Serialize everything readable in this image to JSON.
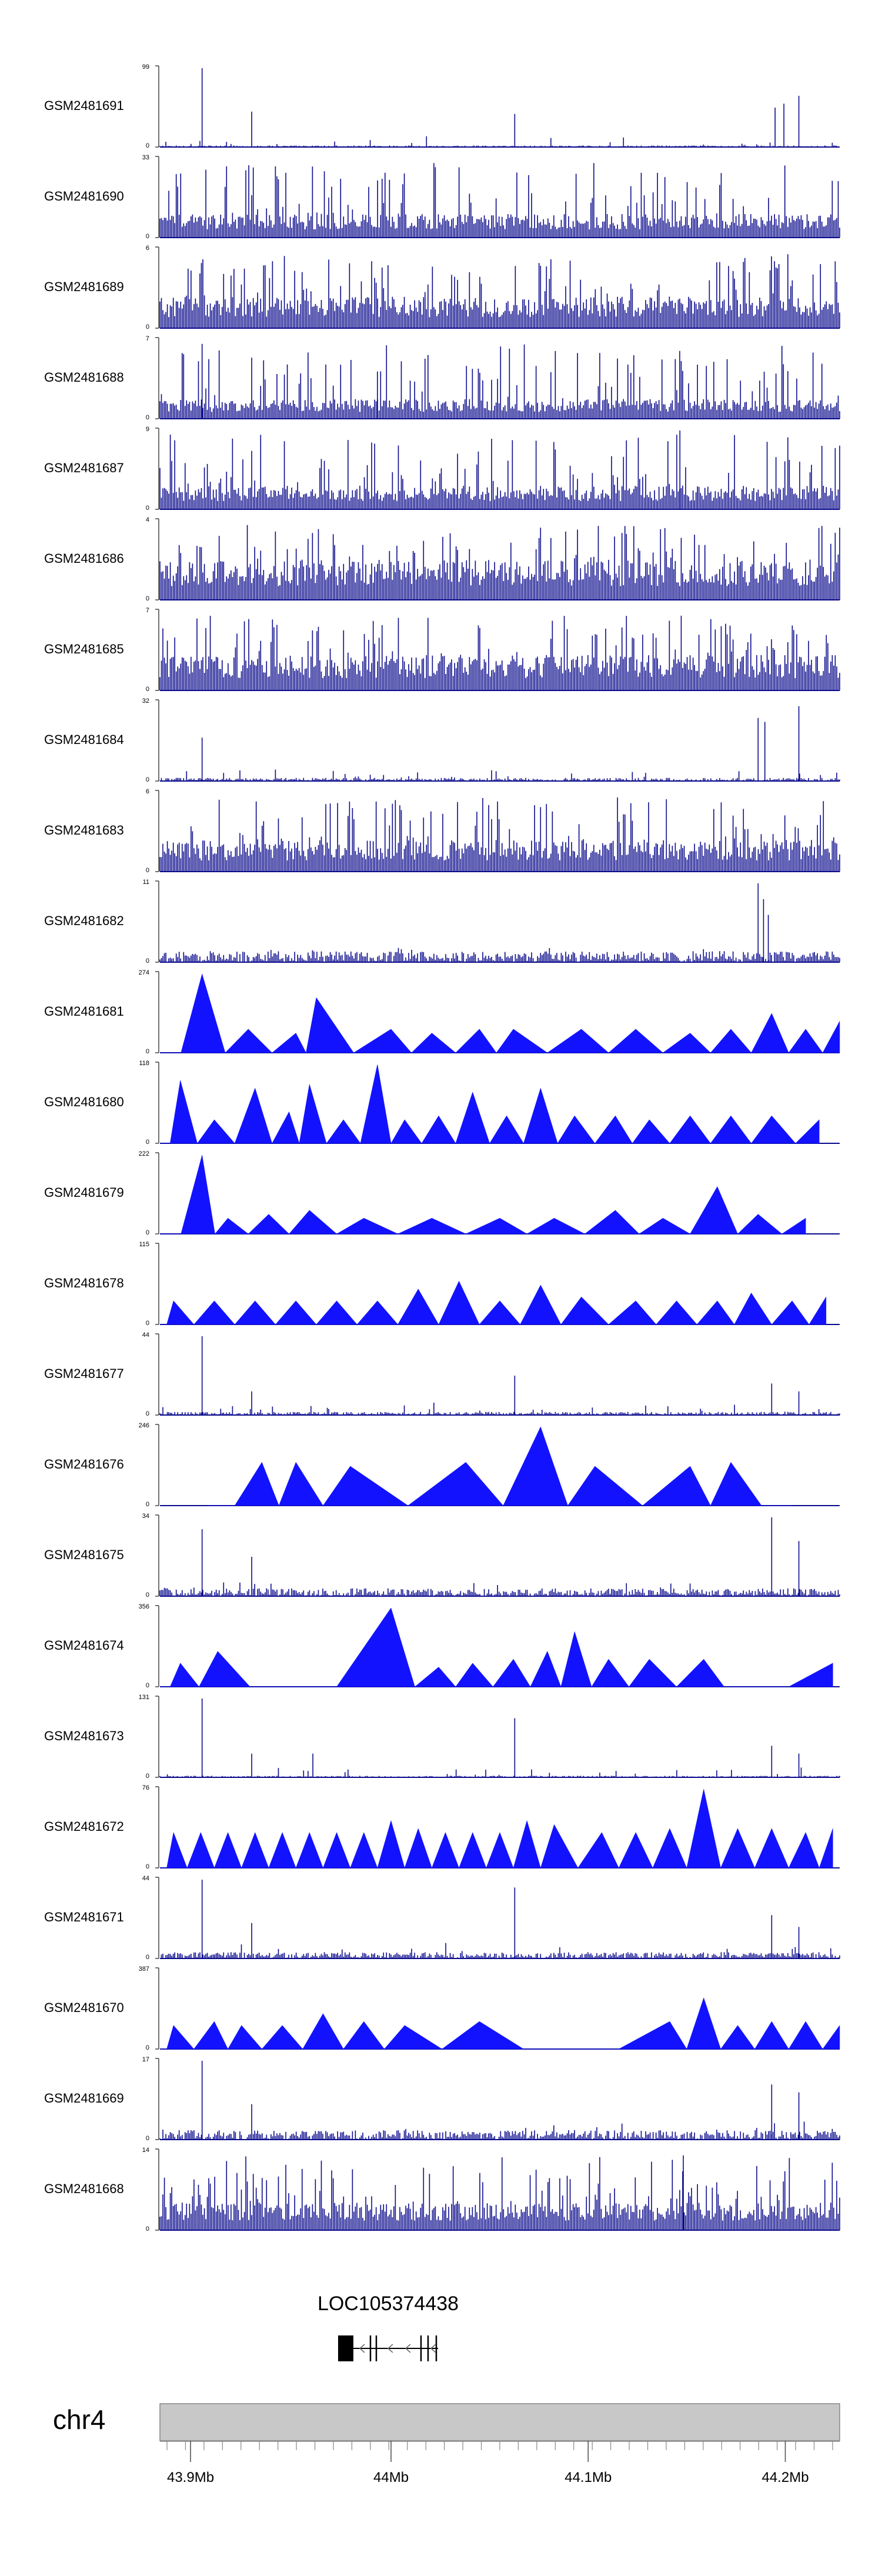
{
  "chart_data": {
    "type": "genome-tracks",
    "colors": {
      "dense": "#0b0b8c",
      "triangles": "#1212ff",
      "axis": "#444444",
      "gene": "#000000",
      "ideogram": "#c8c8c8"
    },
    "tracks": [
      {
        "name": "GSM2481691",
        "ymax": "99",
        "ymin": "0",
        "style": "sparse",
        "base": 0.02,
        "spikes": [
          [
            0.062,
            1.0
          ],
          [
            0.135,
            0.45
          ],
          [
            0.522,
            0.42
          ],
          [
            0.905,
            0.5
          ],
          [
            0.918,
            0.55
          ],
          [
            0.94,
            0.65
          ]
        ]
      },
      {
        "name": "GSM2481690",
        "ymax": "33",
        "ymin": "0",
        "style": "dense",
        "base": 0.3
      },
      {
        "name": "GSM2481689",
        "ymax": "6",
        "ymin": "0",
        "style": "dense",
        "base": 0.4
      },
      {
        "name": "GSM2481688",
        "ymax": "7",
        "ymin": "0",
        "style": "dense",
        "base": 0.25,
        "spikes": [
          [
            0.062,
            0.95
          ],
          [
            0.32,
            0.6
          ]
        ]
      },
      {
        "name": "GSM2481687",
        "ymax": "9",
        "ymin": "0",
        "style": "dense",
        "base": 0.3,
        "spikes": [
          [
            0.765,
            1.0
          ]
        ]
      },
      {
        "name": "GSM2481686",
        "ymax": "4",
        "ymin": "0",
        "style": "dense",
        "base": 0.5
      },
      {
        "name": "GSM2481685",
        "ymax": "7",
        "ymin": "0",
        "style": "dense",
        "base": 0.45
      },
      {
        "name": "GSM2481684",
        "ymax": "32",
        "ymin": "0",
        "style": "sparse",
        "base": 0.04,
        "spikes": [
          [
            0.062,
            0.55
          ],
          [
            0.88,
            0.8
          ],
          [
            0.89,
            0.75
          ],
          [
            0.94,
            0.95
          ]
        ]
      },
      {
        "name": "GSM2481683",
        "ymax": "6",
        "ymin": "0",
        "style": "dense",
        "base": 0.4
      },
      {
        "name": "GSM2481682",
        "ymax": "11",
        "ymin": "0",
        "style": "sparse",
        "base": 0.14,
        "spikes": [
          [
            0.88,
            1.0
          ],
          [
            0.888,
            0.8
          ],
          [
            0.895,
            0.6
          ]
        ]
      },
      {
        "name": "GSM2481681",
        "ymax": "274",
        "ymin": "0",
        "style": "triangles",
        "peaks": [
          [
            0.0,
            0.0
          ],
          [
            0.062,
            1.0
          ],
          [
            0.13,
            0.3
          ],
          [
            0.2,
            0.25
          ],
          [
            0.23,
            0.7
          ],
          [
            0.34,
            0.3
          ],
          [
            0.4,
            0.25
          ],
          [
            0.47,
            0.3
          ],
          [
            0.52,
            0.3
          ],
          [
            0.62,
            0.3
          ],
          [
            0.7,
            0.3
          ],
          [
            0.78,
            0.25
          ],
          [
            0.84,
            0.3
          ],
          [
            0.9,
            0.5
          ],
          [
            0.95,
            0.3
          ],
          [
            1.0,
            0.4
          ]
        ]
      },
      {
        "name": "GSM2481680",
        "ymax": "118",
        "ymin": "0",
        "style": "triangles",
        "peaks": [
          [
            0.0,
            0.0
          ],
          [
            0.03,
            0.8
          ],
          [
            0.08,
            0.3
          ],
          [
            0.14,
            0.7
          ],
          [
            0.19,
            0.4
          ],
          [
            0.22,
            0.75
          ],
          [
            0.27,
            0.3
          ],
          [
            0.32,
            1.0
          ],
          [
            0.36,
            0.3
          ],
          [
            0.41,
            0.35
          ],
          [
            0.46,
            0.65
          ],
          [
            0.51,
            0.35
          ],
          [
            0.56,
            0.7
          ],
          [
            0.61,
            0.35
          ],
          [
            0.67,
            0.35
          ],
          [
            0.72,
            0.3
          ],
          [
            0.78,
            0.35
          ],
          [
            0.84,
            0.35
          ],
          [
            0.9,
            0.35
          ],
          [
            0.97,
            0.3
          ]
        ]
      },
      {
        "name": "GSM2481679",
        "ymax": "222",
        "ymin": "0",
        "style": "triangles",
        "peaks": [
          [
            0.0,
            0.0
          ],
          [
            0.062,
            1.0
          ],
          [
            0.1,
            0.2
          ],
          [
            0.16,
            0.25
          ],
          [
            0.22,
            0.3
          ],
          [
            0.3,
            0.2
          ],
          [
            0.4,
            0.2
          ],
          [
            0.5,
            0.2
          ],
          [
            0.58,
            0.2
          ],
          [
            0.67,
            0.3
          ],
          [
            0.74,
            0.2
          ],
          [
            0.82,
            0.6
          ],
          [
            0.88,
            0.25
          ],
          [
            0.95,
            0.2
          ]
        ]
      },
      {
        "name": "GSM2481678",
        "ymax": "115",
        "ymin": "0",
        "style": "triangles",
        "peaks": [
          [
            0.0,
            0.0
          ],
          [
            0.02,
            0.3
          ],
          [
            0.08,
            0.3
          ],
          [
            0.14,
            0.3
          ],
          [
            0.2,
            0.3
          ],
          [
            0.26,
            0.3
          ],
          [
            0.32,
            0.3
          ],
          [
            0.38,
            0.45
          ],
          [
            0.44,
            0.55
          ],
          [
            0.5,
            0.3
          ],
          [
            0.56,
            0.5
          ],
          [
            0.62,
            0.35
          ],
          [
            0.7,
            0.3
          ],
          [
            0.76,
            0.3
          ],
          [
            0.82,
            0.3
          ],
          [
            0.87,
            0.4
          ],
          [
            0.93,
            0.3
          ],
          [
            0.98,
            0.35
          ]
        ]
      },
      {
        "name": "GSM2481677",
        "ymax": "44",
        "ymin": "0",
        "style": "sparse",
        "base": 0.04,
        "spikes": [
          [
            0.062,
            1.0
          ],
          [
            0.135,
            0.3
          ],
          [
            0.522,
            0.5
          ],
          [
            0.9,
            0.4
          ],
          [
            0.94,
            0.3
          ]
        ]
      },
      {
        "name": "GSM2481676",
        "ymax": "246",
        "ymin": "0",
        "style": "triangles",
        "peaks": [
          [
            0.07,
            0.0
          ],
          [
            0.15,
            0.55
          ],
          [
            0.2,
            0.55
          ],
          [
            0.28,
            0.5
          ],
          [
            0.45,
            0.55
          ],
          [
            0.56,
            1.0
          ],
          [
            0.64,
            0.5
          ],
          [
            0.78,
            0.5
          ],
          [
            0.84,
            0.55
          ],
          [
            0.93,
            0.0
          ]
        ]
      },
      {
        "name": "GSM2481675",
        "ymax": "34",
        "ymin": "0",
        "style": "sparse",
        "base": 0.1,
        "spikes": [
          [
            0.062,
            0.85
          ],
          [
            0.135,
            0.5
          ],
          [
            0.9,
            1.0
          ],
          [
            0.94,
            0.7
          ]
        ]
      },
      {
        "name": "GSM2481674",
        "ymax": "356",
        "ymin": "0",
        "style": "triangles",
        "peaks": [
          [
            0.0,
            0.0
          ],
          [
            0.03,
            0.3
          ],
          [
            0.085,
            0.45
          ],
          [
            0.18,
            0.0
          ],
          [
            0.34,
            1.0
          ],
          [
            0.41,
            0.25
          ],
          [
            0.46,
            0.3
          ],
          [
            0.52,
            0.35
          ],
          [
            0.57,
            0.45
          ],
          [
            0.61,
            0.7
          ],
          [
            0.66,
            0.35
          ],
          [
            0.72,
            0.35
          ],
          [
            0.8,
            0.35
          ],
          [
            0.86,
            0.0
          ],
          [
            0.99,
            0.3
          ]
        ]
      },
      {
        "name": "GSM2481673",
        "ymax": "131",
        "ymin": "0",
        "style": "sparse",
        "base": 0.02,
        "spikes": [
          [
            0.062,
            1.0
          ],
          [
            0.135,
            0.3
          ],
          [
            0.225,
            0.3
          ],
          [
            0.522,
            0.75
          ],
          [
            0.9,
            0.4
          ],
          [
            0.94,
            0.3
          ]
        ]
      },
      {
        "name": "GSM2481672",
        "ymax": "76",
        "ymin": "0",
        "style": "triangles",
        "peaks": [
          [
            0.0,
            0.0
          ],
          [
            0.02,
            0.45
          ],
          [
            0.06,
            0.45
          ],
          [
            0.1,
            0.45
          ],
          [
            0.14,
            0.45
          ],
          [
            0.18,
            0.45
          ],
          [
            0.22,
            0.45
          ],
          [
            0.26,
            0.45
          ],
          [
            0.3,
            0.45
          ],
          [
            0.34,
            0.6
          ],
          [
            0.38,
            0.5
          ],
          [
            0.42,
            0.45
          ],
          [
            0.46,
            0.45
          ],
          [
            0.5,
            0.45
          ],
          [
            0.54,
            0.6
          ],
          [
            0.58,
            0.55
          ],
          [
            0.65,
            0.45
          ],
          [
            0.7,
            0.45
          ],
          [
            0.75,
            0.5
          ],
          [
            0.8,
            1.0
          ],
          [
            0.85,
            0.5
          ],
          [
            0.9,
            0.5
          ],
          [
            0.95,
            0.45
          ],
          [
            0.99,
            0.5
          ]
        ]
      },
      {
        "name": "GSM2481671",
        "ymax": "44",
        "ymin": "0",
        "style": "sparse",
        "base": 0.08,
        "spikes": [
          [
            0.062,
            1.0
          ],
          [
            0.135,
            0.45
          ],
          [
            0.522,
            0.9
          ],
          [
            0.9,
            0.55
          ],
          [
            0.94,
            0.4
          ]
        ]
      },
      {
        "name": "GSM2481670",
        "ymax": "387",
        "ymin": "0",
        "style": "triangles",
        "peaks": [
          [
            0.0,
            0.0
          ],
          [
            0.02,
            0.3
          ],
          [
            0.08,
            0.35
          ],
          [
            0.12,
            0.3
          ],
          [
            0.18,
            0.3
          ],
          [
            0.24,
            0.45
          ],
          [
            0.3,
            0.35
          ],
          [
            0.36,
            0.3
          ],
          [
            0.47,
            0.35
          ],
          [
            0.6,
            0.0
          ],
          [
            0.75,
            0.35
          ],
          [
            0.8,
            0.65
          ],
          [
            0.85,
            0.3
          ],
          [
            0.9,
            0.35
          ],
          [
            0.95,
            0.35
          ],
          [
            1.0,
            0.3
          ]
        ]
      },
      {
        "name": "GSM2481669",
        "ymax": "17",
        "ymin": "0",
        "style": "sparse",
        "base": 0.12,
        "spikes": [
          [
            0.062,
            1.0
          ],
          [
            0.135,
            0.45
          ],
          [
            0.9,
            0.7
          ],
          [
            0.94,
            0.6
          ]
        ]
      },
      {
        "name": "GSM2481668",
        "ymax": "14",
        "ymin": "0",
        "style": "dense",
        "base": 0.35,
        "spikes": [
          [
            0.77,
            0.95
          ]
        ]
      }
    ],
    "gene": {
      "label": "LOC105374438",
      "start_frac": 0.265,
      "end_frac": 0.41,
      "strand": "-"
    },
    "chromosome": {
      "name": "chr4",
      "ticks": [
        {
          "label": "43.9Mb",
          "frac": 0.045
        },
        {
          "label": "44Mb",
          "frac": 0.34
        },
        {
          "label": "44.1Mb",
          "frac": 0.63
        },
        {
          "label": "44.2Mb",
          "frac": 0.92
        }
      ]
    }
  }
}
